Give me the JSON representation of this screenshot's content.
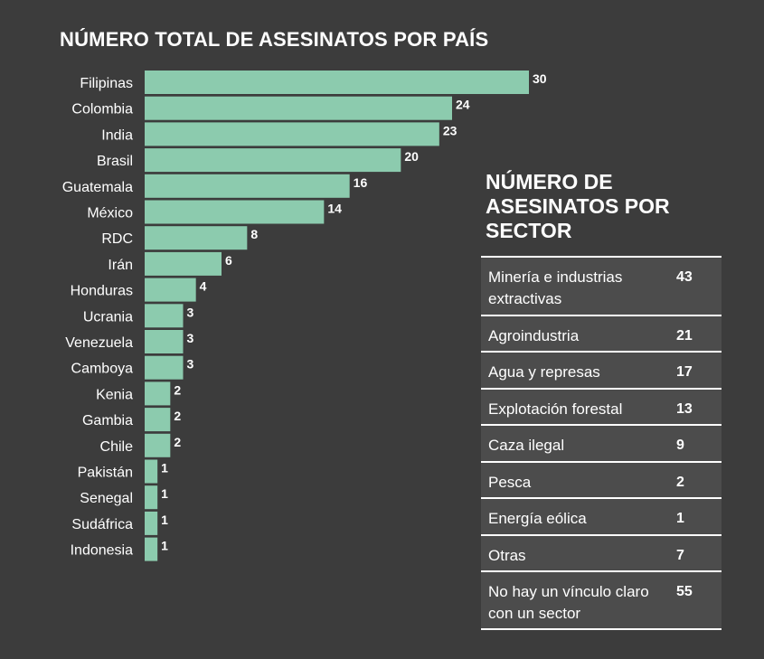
{
  "chart_data": [
    {
      "type": "bar",
      "orientation": "horizontal",
      "title": "NÚMERO TOTAL DE ASESINATOS POR PAÍS",
      "categories": [
        "Filipinas",
        "Colombia",
        "India",
        "Brasil",
        "Guatemala",
        "México",
        "RDC",
        "Irán",
        "Honduras",
        "Ucrania",
        "Venezuela",
        "Camboya",
        "Kenia",
        "Gambia",
        "Chile",
        "Pakistán",
        "Senegal",
        "Sudáfrica",
        "Indonesia"
      ],
      "values": [
        30,
        24,
        23,
        20,
        16,
        14,
        8,
        6,
        4,
        3,
        3,
        3,
        2,
        2,
        2,
        1,
        1,
        1,
        1
      ],
      "bar_color": "#8ccbae",
      "data_labels": true,
      "grid": false
    },
    {
      "type": "table",
      "title": "NÚMERO DE ASESINATOS POR SECTOR",
      "rows": [
        {
          "label": "Minería e industrias extractivas",
          "value": "43"
        },
        {
          "label": "Agroindustria",
          "value": "21"
        },
        {
          "label": "Agua y represas",
          "value": "17"
        },
        {
          "label": "Explotación forestal",
          "value": "13"
        },
        {
          "label": "Caza ilegal",
          "value": "9"
        },
        {
          "label": "Pesca",
          "value": "2"
        },
        {
          "label": "Energía eólica",
          "value": "1"
        },
        {
          "label": "Otras",
          "value": "7"
        },
        {
          "label": "No hay un vínculo claro con un sector",
          "value": "55"
        }
      ]
    }
  ],
  "colors": {
    "background": "#3c3c3c",
    "bar": "#8ccbae",
    "table_row": "#4c4c4c",
    "text": "#ffffff"
  }
}
